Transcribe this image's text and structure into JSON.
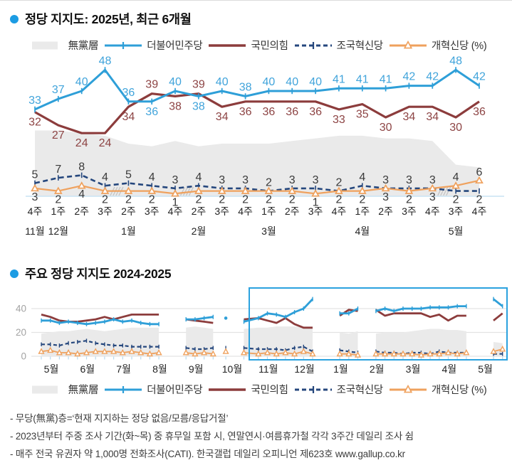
{
  "colors": {
    "blue": "#2E9FD8",
    "blue_label": "#41A4DB",
    "red": "#8C3C3C",
    "red_label": "#8D4444",
    "navy": "#25477D",
    "orange": "#EFA15D",
    "gray_area": "#EAEAEA",
    "value_dark": "#3A3A3A",
    "axis_blue": "#C9E3F3",
    "tick_blue": "#B5D9EF",
    "grid": "#E3E3E3",
    "box": "#2BA2DF",
    "hatch": "#C4C4C4",
    "bullet": "#1C9CE3",
    "axis_gray": "#A3A3A3",
    "text": "#222222"
  },
  "header": {
    "title1": "정당 지지도: 2025년, 최근 6개월",
    "title2": "주요 정당 지지도 2024-2025"
  },
  "legend": {
    "items": [
      {
        "label": "無黨層",
        "marker": "area",
        "color": "gray_area"
      },
      {
        "label": "더불어민주당",
        "marker": "line-tick",
        "color": "blue"
      },
      {
        "label": "국민의힘",
        "marker": "line",
        "color": "red"
      },
      {
        "label": "조국혁신당",
        "marker": "dash-tick",
        "color": "navy"
      },
      {
        "label": "개혁신당 (%)",
        "marker": "line-triangle",
        "color": "orange"
      }
    ]
  },
  "chart_data": [
    {
      "type": "line",
      "title": "정당 지지도: 2025년, 최근 6개월",
      "ylim": [
        0,
        52
      ],
      "grid": false,
      "x_week_labels": [
        "4주",
        "1주",
        "2주",
        "3주",
        "2주",
        "3주",
        "4주",
        "2주",
        "3주",
        "4주",
        "1주",
        "2주",
        "3주",
        "4주",
        "1주",
        "2주",
        "3주",
        "4주",
        "3주",
        "4주"
      ],
      "x_month_labels": [
        {
          "label": "11월",
          "at": 0
        },
        {
          "label": "12월",
          "at": 1
        },
        {
          "label": "1월",
          "at": 4
        },
        {
          "label": "2월",
          "at": 7
        },
        {
          "label": "3월",
          "at": 10
        },
        {
          "label": "4월",
          "at": 14
        },
        {
          "label": "5월",
          "at": 18
        }
      ],
      "survey_break_after_index": [
        3,
        6,
        17
      ],
      "series": [
        {
          "key": "blue",
          "name": "더불어민주당",
          "values": [
            33,
            37,
            40,
            48,
            36,
            36,
            40,
            38,
            40,
            38,
            40,
            40,
            40,
            41,
            41,
            41,
            42,
            42,
            48,
            42
          ]
        },
        {
          "key": "red",
          "name": "국민의힘",
          "values": [
            32,
            27,
            24,
            24,
            34,
            39,
            38,
            39,
            34,
            36,
            36,
            36,
            36,
            33,
            35,
            30,
            34,
            34,
            30,
            36
          ]
        },
        {
          "key": "navy",
          "name": "조국혁신당",
          "values": [
            5,
            7,
            8,
            4,
            5,
            4,
            3,
            4,
            3,
            3,
            2,
            3,
            3,
            2,
            4,
            3,
            3,
            3,
            2,
            2
          ]
        },
        {
          "key": "orange",
          "name": "개혁신당",
          "values": [
            3,
            2,
            4,
            2,
            2,
            2,
            1,
            2,
            2,
            2,
            2,
            2,
            1,
            2,
            2,
            3,
            2,
            3,
            4,
            6
          ]
        },
        {
          "key": "gray",
          "name": "무당층(영역, 추정)",
          "values": [
            25,
            25,
            24,
            23,
            20,
            19,
            21,
            19,
            20,
            20,
            20,
            21,
            22,
            23,
            23,
            22,
            22,
            21,
            12,
            11
          ]
        }
      ]
    },
    {
      "type": "line",
      "title": "주요 정당 지지도 2024-2025",
      "y_ticks": [
        0,
        20,
        40
      ],
      "ylim": [
        0,
        55
      ],
      "grid": true,
      "x_months": [
        "5월",
        "6월",
        "7월",
        "8월",
        "9월",
        "10월",
        "11월",
        "12월",
        "1월",
        "2월",
        "3월",
        "4월",
        "5월"
      ],
      "highlight_box": {
        "from_month": "11월",
        "to_month": "5월"
      },
      "x": [
        0,
        0.25,
        0.5,
        0.75,
        1,
        1.25,
        1.5,
        1.75,
        2,
        2.25,
        2.5,
        2.75,
        3,
        3.25,
        null,
        4,
        4.25,
        4.5,
        4.75,
        null,
        5.1,
        null,
        5.6,
        6,
        6.25,
        6.5,
        6.75,
        7,
        7.25,
        7.5,
        null,
        8.25,
        8.5,
        8.75,
        null,
        9.25,
        9.5,
        9.75,
        10,
        10.25,
        10.5,
        10.75,
        11,
        11.25,
        11.5,
        11.75,
        null,
        12.5,
        12.75
      ],
      "series": [
        {
          "key": "blue",
          "name": "더불어민주당",
          "values": [
            30,
            30,
            28,
            29,
            28,
            27,
            28,
            29,
            31,
            29,
            30,
            28,
            27,
            27,
            null,
            31,
            31,
            32,
            33,
            null,
            32,
            null,
            29,
            32,
            36,
            35,
            33,
            37,
            40,
            48,
            null,
            36,
            36,
            40,
            null,
            38,
            40,
            38,
            40,
            40,
            40,
            41,
            41,
            41,
            42,
            42,
            null,
            48,
            42
          ]
        },
        {
          "key": "red",
          "name": "국민의힘",
          "values": [
            35,
            33,
            30,
            29,
            29,
            30,
            31,
            33,
            31,
            33,
            35,
            35,
            35,
            35,
            null,
            31,
            30,
            29,
            28,
            null,
            null,
            null,
            31,
            32,
            30,
            28,
            32,
            27,
            24,
            24,
            null,
            34,
            39,
            38,
            null,
            39,
            34,
            36,
            36,
            36,
            36,
            33,
            35,
            30,
            34,
            34,
            null,
            30,
            36
          ]
        },
        {
          "key": "navy",
          "name": "조국혁신당",
          "values": [
            10,
            10,
            9,
            11,
            12,
            13,
            11,
            10,
            9,
            9,
            8,
            8,
            8,
            8,
            null,
            7,
            6,
            6,
            7,
            null,
            7,
            null,
            7,
            6,
            6,
            6,
            5,
            7,
            8,
            4,
            null,
            5,
            4,
            3,
            null,
            4,
            3,
            3,
            2,
            3,
            3,
            2,
            4,
            3,
            3,
            3,
            null,
            2,
            2
          ]
        },
        {
          "key": "orange",
          "name": "개혁신당",
          "values": [
            4,
            5,
            3,
            3,
            2,
            3,
            4,
            4,
            4,
            3,
            4,
            3,
            2,
            3,
            null,
            3,
            2,
            3,
            2,
            null,
            4,
            null,
            3,
            2,
            3,
            2,
            3,
            2,
            4,
            2,
            null,
            2,
            2,
            1,
            null,
            2,
            2,
            2,
            2,
            2,
            1,
            2,
            2,
            3,
            2,
            3,
            null,
            4,
            6
          ]
        },
        {
          "key": "gray",
          "name": "무당층(영역, 추정)",
          "values": [
            19,
            20,
            21,
            21,
            22,
            23,
            22,
            21,
            22,
            23,
            24,
            24,
            24,
            24,
            null,
            24,
            25,
            24,
            23,
            null,
            null,
            null,
            23,
            24,
            24,
            25,
            25,
            25,
            24,
            23,
            null,
            20,
            19,
            21,
            null,
            19,
            20,
            20,
            20,
            21,
            22,
            23,
            23,
            22,
            22,
            21,
            null,
            12,
            11
          ]
        }
      ]
    }
  ],
  "footnotes": [
    "- 무당(無黨)층=‘현재 지지하는 정당 없음/모름/응답거절’",
    "- 2023년부터 주중 조사 기간(화~목) 중 휴무일 포함 시, 연말연시·여름휴가철 각각 3주간 데일리 조사 쉼",
    "- 매주 전국 유권자 약 1,000명 전화조사(CATI). 한국갤럽 데일리 오피니언 제623호 www.gallup.co.kr"
  ]
}
